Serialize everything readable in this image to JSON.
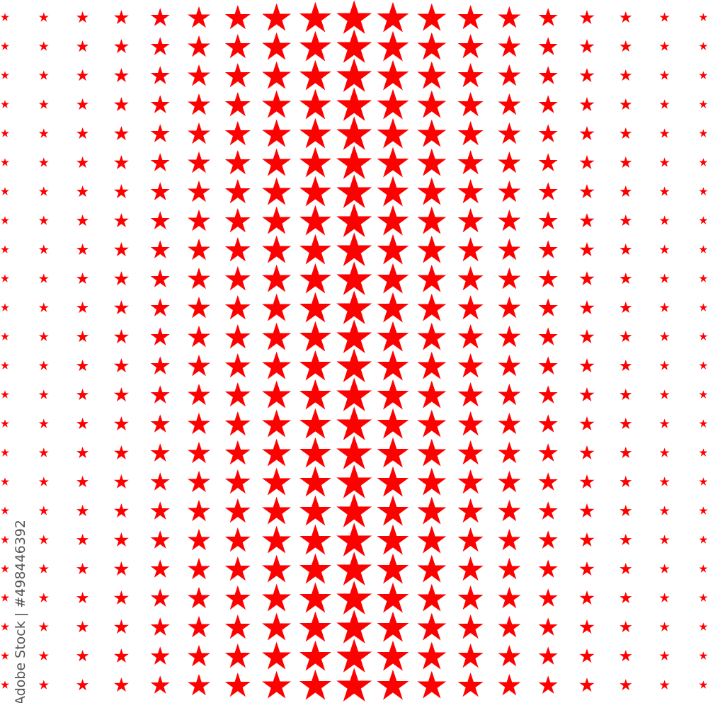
{
  "pattern": {
    "shape": "five-point-star",
    "star_color": "#ff0000",
    "background_color": "#ffffff",
    "columns": 19,
    "rows": 24,
    "size_gradient": "largest in center column, decreasing toward left and right edges"
  },
  "watermark": {
    "text": "Adobe Stock | #498446392"
  }
}
